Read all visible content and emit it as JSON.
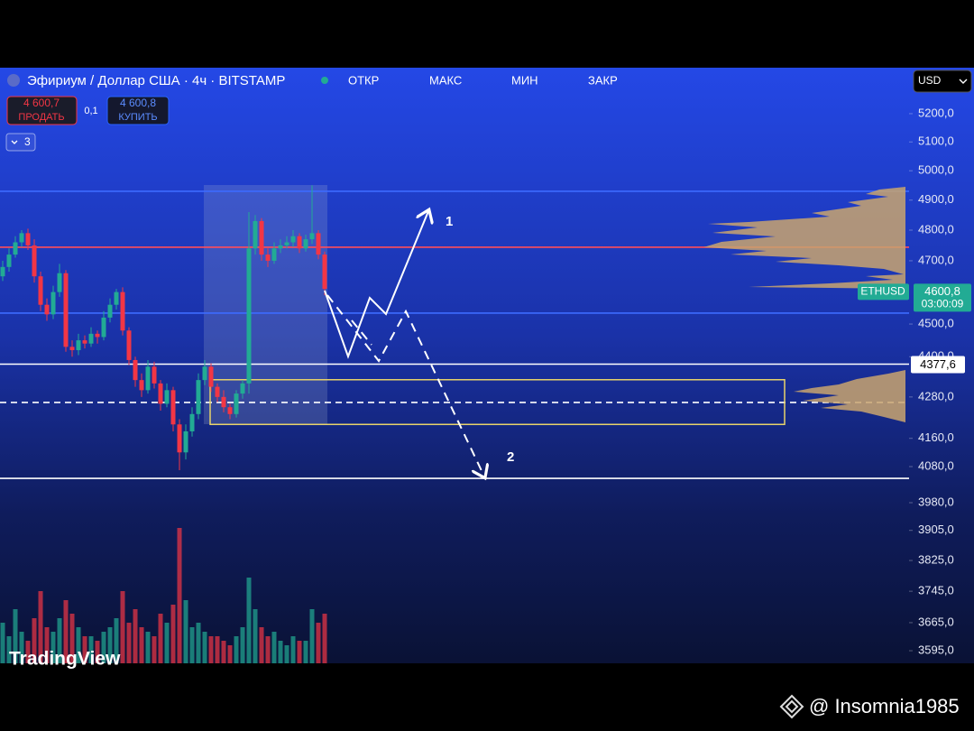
{
  "header": {
    "title": "Эфириум / Доллар США · 4ч · BITSTAMP",
    "ohlc_labels": [
      "ОТКР",
      "МАКС",
      "МИН",
      "ЗАКР"
    ],
    "sell": {
      "price": "4 600,7",
      "label": "ПРОДАТЬ"
    },
    "spread": "0,1",
    "buy": {
      "price": "4 600,8",
      "label": "КУПИТЬ"
    },
    "indicators_count": "3",
    "currency": "USD"
  },
  "chart_data": {
    "type": "candlestick",
    "symbol": "ETHUSD",
    "log_scale": true,
    "ylim": [
      3564,
      5367
    ],
    "yticks": [
      {
        "value": 5200,
        "label": "5200,0"
      },
      {
        "value": 5100,
        "label": "5100,0"
      },
      {
        "value": 5000,
        "label": "5000,0"
      },
      {
        "value": 4900,
        "label": "4900,0"
      },
      {
        "value": 4800,
        "label": "4800,0"
      },
      {
        "value": 4700,
        "label": "4700,0"
      },
      {
        "value": 4500,
        "label": "4500,0"
      },
      {
        "value": 4400,
        "label": "4400,0"
      },
      {
        "value": 4280,
        "label": "4280,0"
      },
      {
        "value": 4160,
        "label": "4160,0"
      },
      {
        "value": 4080,
        "label": "4080,0"
      },
      {
        "value": 3980,
        "label": "3980,0"
      },
      {
        "value": 3905,
        "label": "3905,0"
      },
      {
        "value": 3825,
        "label": "3825,0"
      },
      {
        "value": 3745,
        "label": "3745,0"
      },
      {
        "value": 3665,
        "label": "3665,0"
      },
      {
        "value": 3595,
        "label": "3595,0"
      }
    ],
    "up_color": "#22ab94",
    "down_color": "#f23645",
    "open": [
      4650,
      4680,
      4720,
      4760,
      4790,
      4750,
      4650,
      4560,
      4530,
      4600,
      4660,
      4430,
      4420,
      4450,
      4440,
      4470,
      4460,
      4520,
      4560,
      4600,
      4480,
      4390,
      4330,
      4300,
      4370,
      4320,
      4260,
      4300,
      4200,
      4120,
      4180,
      4230,
      4330,
      4370,
      4310,
      4280,
      4250,
      4230,
      4290,
      4320,
      4740,
      4830,
      4720,
      4700,
      4740,
      4750,
      4760,
      4780,
      4740,
      4770,
      4790,
      4720
    ],
    "high": [
      4700,
      4740,
      4780,
      4800,
      4805,
      4770,
      4665,
      4580,
      4620,
      4690,
      4670,
      4450,
      4470,
      4465,
      4490,
      4480,
      4540,
      4580,
      4610,
      4615,
      4490,
      4400,
      4350,
      4390,
      4385,
      4330,
      4320,
      4310,
      4215,
      4200,
      4250,
      4350,
      4390,
      4380,
      4320,
      4300,
      4260,
      4300,
      4330,
      4860,
      4850,
      4840,
      4740,
      4760,
      4770,
      4780,
      4800,
      4790,
      4785,
      4950,
      4800,
      4730
    ],
    "low": [
      4635,
      4665,
      4710,
      4745,
      4735,
      4630,
      4540,
      4510,
      4515,
      4585,
      4415,
      4400,
      4405,
      4425,
      4430,
      4440,
      4450,
      4505,
      4545,
      4465,
      4375,
      4310,
      4280,
      4290,
      4305,
      4240,
      4250,
      4180,
      4070,
      4100,
      4165,
      4215,
      4315,
      4295,
      4265,
      4235,
      4215,
      4220,
      4275,
      4290,
      4720,
      4700,
      4680,
      4690,
      4725,
      4740,
      4745,
      4725,
      4730,
      4755,
      4705,
      4590
    ],
    "close": [
      4680,
      4720,
      4760,
      4790,
      4750,
      4650,
      4560,
      4530,
      4600,
      4660,
      4430,
      4420,
      4450,
      4440,
      4470,
      4460,
      4520,
      4560,
      4600,
      4480,
      4390,
      4330,
      4300,
      4370,
      4320,
      4260,
      4300,
      4200,
      4120,
      4180,
      4230,
      4330,
      4370,
      4310,
      4280,
      4250,
      4230,
      4290,
      4320,
      4740,
      4830,
      4720,
      4700,
      4740,
      4750,
      4760,
      4780,
      4740,
      4770,
      4790,
      4720,
      4610
    ],
    "volume": [
      45,
      30,
      60,
      35,
      25,
      50,
      80,
      40,
      35,
      50,
      70,
      55,
      40,
      30,
      30,
      25,
      35,
      40,
      50,
      80,
      45,
      60,
      40,
      35,
      30,
      55,
      45,
      65,
      150,
      70,
      40,
      45,
      35,
      30,
      30,
      25,
      20,
      30,
      40,
      95,
      60,
      40,
      30,
      35,
      25,
      20,
      30,
      25,
      25,
      60,
      45,
      55
    ],
    "levels": [
      {
        "value": 4930,
        "color": "#3d6bff",
        "style": "solid"
      },
      {
        "value": 4744,
        "color": "#ff4d5a",
        "style": "solid"
      },
      {
        "value": 4534,
        "color": "#3d6bff",
        "style": "solid"
      },
      {
        "value": 4377.6,
        "color": "#ffffff",
        "style": "solid"
      },
      {
        "value": 4264,
        "color": "#ffffff",
        "style": "dashed"
      },
      {
        "value": 4047,
        "color": "#ffffff",
        "style": "solid"
      }
    ],
    "zone": {
      "high": 4331,
      "low": 4200,
      "color": "#e8d36a"
    },
    "last_price": {
      "value": 4600.8,
      "label": "4600,8"
    },
    "countdown": "03:00:09",
    "level_price": {
      "value": 4377.6,
      "label": "4377,6"
    },
    "annotations": [
      "1",
      "2"
    ]
  },
  "watermark": "TradingView",
  "credit": "@ Insomnia1985"
}
